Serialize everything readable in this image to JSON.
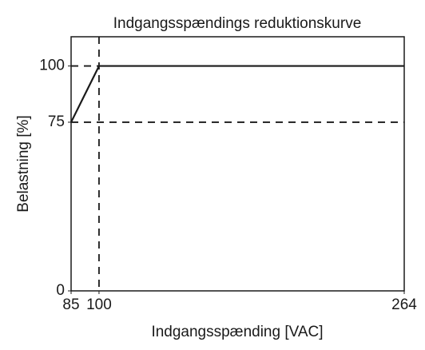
{
  "chart_data": {
    "type": "line",
    "title": "Indgangsspændings reduktionskurve",
    "x_label": "Indgangsspænding [VAC]",
    "y_label": "Belastning [%]",
    "x": [
      85,
      100,
      264
    ],
    "series": [
      {
        "color": "#1a1a1a",
        "values": [
          75,
          100,
          100
        ]
      }
    ],
    "xlim": [
      85,
      264
    ],
    "ylim": [
      0,
      113
    ],
    "xticks": [
      85,
      100,
      264
    ],
    "yticks": [
      0,
      75,
      100
    ],
    "hlines": [
      75,
      100
    ],
    "vlines": [
      100
    ]
  }
}
